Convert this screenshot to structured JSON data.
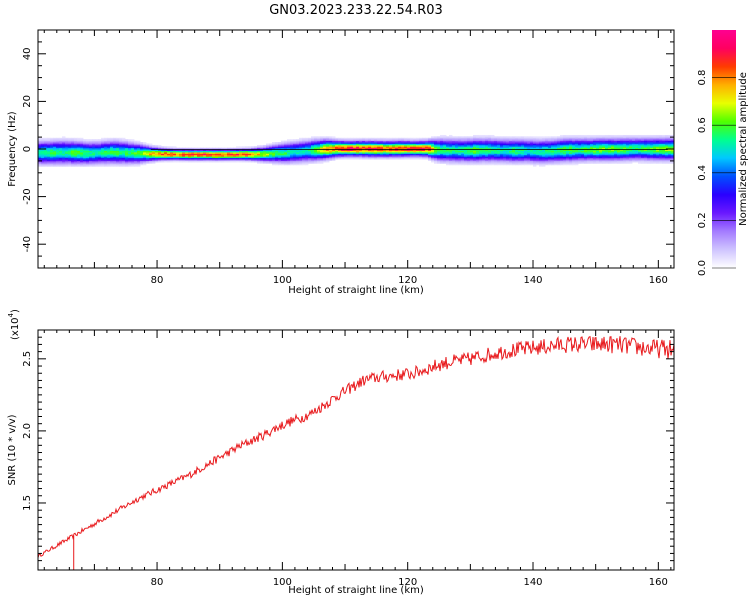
{
  "title": "GN03.2023.233.22.54.R03",
  "colors": {
    "snr_line": "#e8191c",
    "axis": "#000000",
    "colormap": [
      "#ffffff",
      "#cfc4ff",
      "#a47cff",
      "#6a18ff",
      "#2a00ff",
      "#0050ff",
      "#00c8ff",
      "#00ff90",
      "#50ff00",
      "#e8ff00",
      "#ffb000",
      "#ff3c00",
      "#ff0060",
      "#ff0090"
    ]
  },
  "chart_data": [
    {
      "type": "heatmap",
      "name": "spectrogram",
      "xlabel": "Height of straight line (km)",
      "ylabel": "Frequency (Hz)",
      "xlim": [
        61,
        162.5
      ],
      "ylim": [
        -50,
        50
      ],
      "xticks": [
        80,
        100,
        120,
        140,
        160
      ],
      "yticks": [
        40,
        20,
        0,
        -20,
        -40
      ],
      "xtick_labels": [
        "80",
        "100",
        "120",
        "140",
        "160"
      ],
      "ytick_labels": [
        "40",
        "20",
        "0",
        "-20",
        "-40"
      ],
      "colorbar": {
        "label": "Normalized spectral amplitude",
        "range": [
          0,
          1
        ],
        "ticks": [
          0.0,
          0.2,
          0.4,
          0.6,
          0.8
        ],
        "tick_labels": [
          "0.0",
          "0.2",
          "0.4",
          "0.6",
          "0.8"
        ]
      },
      "profile": {
        "height_km": [
          61,
          63,
          65,
          67,
          69,
          71,
          73,
          75,
          77,
          79,
          81,
          83,
          85,
          87,
          89,
          91,
          93,
          95,
          97,
          99,
          101,
          103,
          105,
          107,
          109,
          111,
          113,
          115,
          117,
          119,
          121,
          123,
          125,
          127,
          129,
          131,
          133,
          135,
          137,
          139,
          141,
          143,
          145,
          147,
          149,
          151,
          153,
          155,
          157,
          159,
          161
        ],
        "center_freq_hz": [
          -1.5,
          -1.5,
          -1.3,
          -1.5,
          -1.7,
          -1.5,
          -1.2,
          -1.5,
          -1.8,
          -2.0,
          -2.1,
          -2.2,
          -2.3,
          -2.3,
          -2.3,
          -2.3,
          -2.2,
          -2.2,
          -2.1,
          -1.8,
          -1.5,
          -1.0,
          -0.5,
          0.0,
          0.2,
          0.2,
          0.2,
          0.1,
          0.1,
          0.2,
          0.2,
          0.2,
          -0.3,
          -0.5,
          -0.6,
          -0.5,
          -0.4,
          -0.6,
          -0.7,
          -0.7,
          -1.0,
          -0.8,
          -0.4,
          -0.3,
          -0.2,
          -0.1,
          -0.1,
          0.0,
          0.1,
          0.0,
          0.0
        ],
        "peak_amplitude": [
          0.55,
          0.6,
          0.55,
          0.6,
          0.58,
          0.55,
          0.6,
          0.58,
          0.62,
          0.78,
          0.85,
          0.86,
          0.88,
          0.9,
          0.9,
          0.9,
          0.88,
          0.85,
          0.7,
          0.62,
          0.55,
          0.52,
          0.6,
          0.8,
          0.92,
          0.95,
          0.9,
          0.9,
          0.88,
          0.9,
          0.92,
          0.92,
          0.6,
          0.55,
          0.58,
          0.62,
          0.58,
          0.55,
          0.58,
          0.55,
          0.55,
          0.58,
          0.62,
          0.6,
          0.62,
          0.66,
          0.65,
          0.62,
          0.6,
          0.62,
          0.66
        ],
        "spread_hz": [
          2.6,
          2.6,
          2.7,
          2.6,
          2.5,
          2.5,
          2.6,
          2.5,
          2.2,
          1.6,
          1.3,
          1.2,
          1.2,
          1.2,
          1.2,
          1.2,
          1.2,
          1.3,
          1.6,
          2.0,
          2.3,
          2.4,
          2.4,
          2.2,
          1.8,
          1.7,
          1.8,
          1.8,
          1.8,
          1.8,
          1.7,
          1.8,
          2.5,
          2.6,
          2.6,
          2.6,
          2.6,
          2.6,
          2.6,
          2.6,
          2.6,
          2.6,
          2.6,
          2.6,
          2.5,
          2.5,
          2.5,
          2.5,
          2.5,
          2.5,
          2.5
        ]
      }
    },
    {
      "type": "line",
      "name": "snr",
      "xlabel": "Height of straight line (km)",
      "ylabel": "SNR (10 * v/v)",
      "multiplier": "(x10",
      "multiplier_exponent": "4",
      "multiplier_close": ")",
      "xlim": [
        61,
        162.5
      ],
      "ylim": [
        10350,
        27000
      ],
      "xticks": [
        80,
        100,
        120,
        140,
        160
      ],
      "xtick_labels": [
        "80",
        "100",
        "120",
        "140",
        "160"
      ],
      "yticks": [
        15000,
        20000,
        25000
      ],
      "ytick_labels": [
        "1.5",
        "2.0",
        "2.5"
      ],
      "series": [
        {
          "x": [
            61,
            63,
            65,
            67,
            69,
            71,
            73,
            75,
            77,
            79,
            81,
            83,
            85,
            87,
            89,
            91,
            93,
            95,
            97,
            99,
            101,
            103,
            105,
            107,
            109,
            111,
            113,
            115,
            117,
            119,
            121,
            123,
            125,
            127,
            129,
            131,
            133,
            135,
            137,
            139,
            141,
            143,
            145,
            147,
            149,
            151,
            153,
            155,
            157,
            159,
            161,
            162.5
          ],
          "values": [
            11300,
            11800,
            12300,
            12800,
            13300,
            13800,
            14300,
            14800,
            15300,
            15700,
            16100,
            16500,
            16900,
            17400,
            17900,
            18400,
            18900,
            19300,
            19700,
            20200,
            20600,
            20900,
            21300,
            21900,
            22500,
            23000,
            23500,
            23700,
            23800,
            23900,
            24000,
            24300,
            24600,
            24800,
            24900,
            25100,
            25300,
            25500,
            25600,
            25700,
            25800,
            25900,
            26000,
            26000,
            26000,
            26000,
            26000,
            25900,
            25800,
            25700,
            25700,
            25600
          ]
        }
      ],
      "dip": {
        "x": 66.7,
        "value": 10350
      }
    }
  ]
}
